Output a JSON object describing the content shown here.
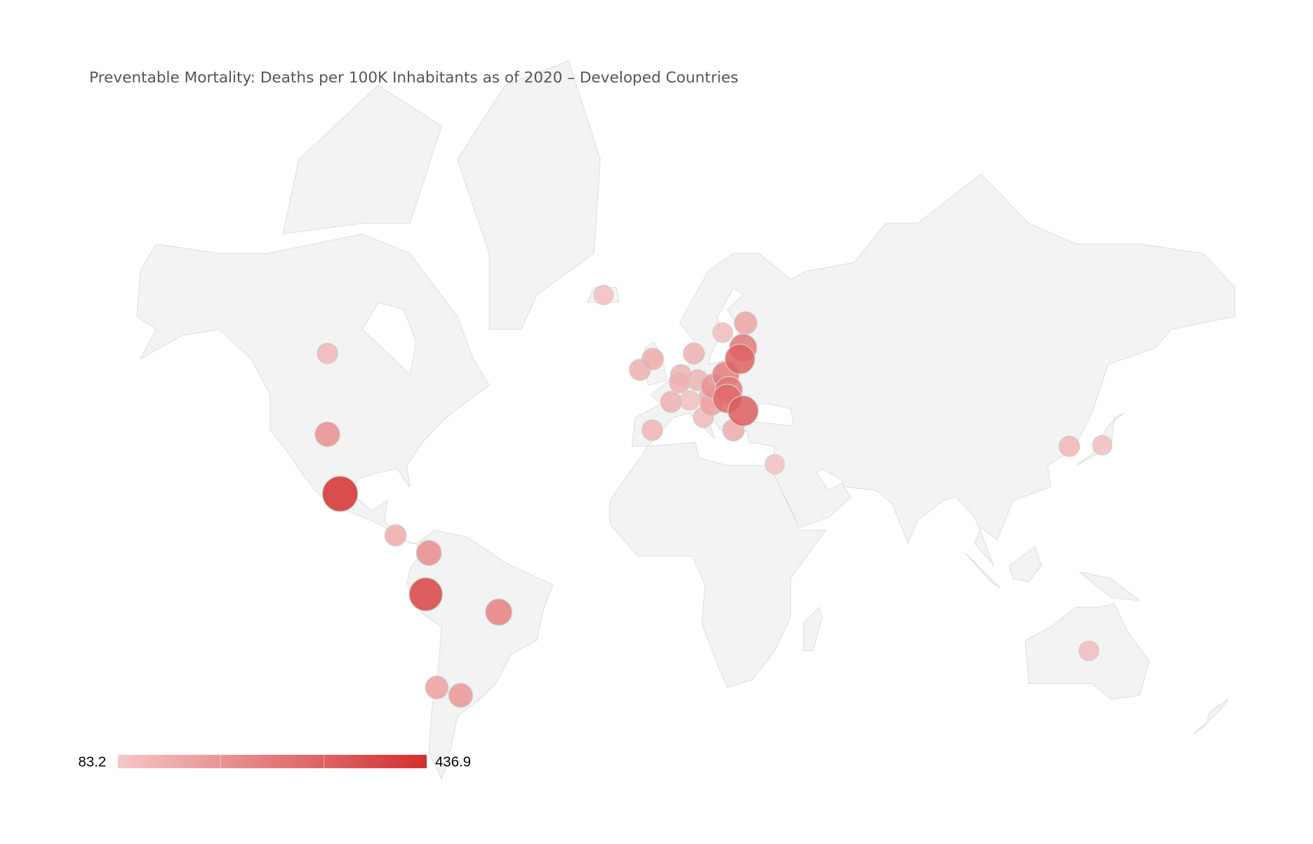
{
  "title": "Preventable Mortality: Deaths per 100K Inhabitants as of 2020 – Developed Countries",
  "legend": {
    "min_label": "83.2",
    "max_label": "436.9",
    "min": 83.2,
    "max": 436.9,
    "color_min": "#f4c7c7",
    "color_max": "#d32f2f"
  },
  "colors": {
    "land": "#f3f3f3",
    "border": "#dcdcdc",
    "background": "#ffffff"
  },
  "chart_data": {
    "type": "bubble-map",
    "title": "Preventable Mortality: Deaths per 100K Inhabitants as of 2020 – Developed Countries",
    "color_range": [
      83.2,
      436.9
    ],
    "markers": [
      {
        "country": "Canada",
        "lon": -106,
        "lat": 56,
        "value": 125
      },
      {
        "country": "United States",
        "lon": -106,
        "lat": 39,
        "value": 215
      },
      {
        "country": "Mexico",
        "lon": -102,
        "lat": 23,
        "value": 436.9
      },
      {
        "country": "Costa Rica",
        "lon": -84.5,
        "lat": 10.5,
        "value": 145
      },
      {
        "country": "Colombia",
        "lon": -74,
        "lat": 5,
        "value": 220
      },
      {
        "country": "Peru",
        "lon": -75,
        "lat": -8,
        "value": 390
      },
      {
        "country": "Brazil",
        "lon": -52,
        "lat": -13.5,
        "value": 250
      },
      {
        "country": "Chile",
        "lon": -71.5,
        "lat": -35,
        "value": 175
      },
      {
        "country": "Argentina",
        "lon": -64,
        "lat": -37,
        "value": 200
      },
      {
        "country": "Iceland",
        "lon": -19,
        "lat": 65,
        "value": 105
      },
      {
        "country": "Ireland",
        "lon": -7.5,
        "lat": 53,
        "value": 140
      },
      {
        "country": "United Kingdom",
        "lon": -3.5,
        "lat": 55,
        "value": 150
      },
      {
        "country": "Spain",
        "lon": -3.6,
        "lat": 40,
        "value": 130
      },
      {
        "country": "France",
        "lon": 2.3,
        "lat": 46.5,
        "value": 140
      },
      {
        "country": "Belgium",
        "lon": 5,
        "lat": 50.6,
        "value": 140
      },
      {
        "country": "Netherlands",
        "lon": 5.4,
        "lat": 52,
        "value": 135
      },
      {
        "country": "Luxembourg",
        "lon": 10.7,
        "lat": 51,
        "value": 135
      },
      {
        "country": "Switzerland",
        "lon": 8.2,
        "lat": 46.8,
        "value": 105
      },
      {
        "country": "Denmark",
        "lon": 9.5,
        "lat": 56,
        "value": 140
      },
      {
        "country": "Sweden",
        "lon": 18.6,
        "lat": 59.5,
        "value": 110
      },
      {
        "country": "Estonia",
        "lon": 25.8,
        "lat": 61,
        "value": 170
      },
      {
        "country": "Latvia",
        "lon": 25,
        "lat": 57,
        "value": 270
      },
      {
        "country": "Lithuania",
        "lon": 24,
        "lat": 55,
        "value": 320
      },
      {
        "country": "Poland",
        "lon": 19.5,
        "lat": 52,
        "value": 255
      },
      {
        "country": "Czechia",
        "lon": 15.6,
        "lat": 49.8,
        "value": 210
      },
      {
        "country": "Slovakia",
        "lon": 20.5,
        "lat": 49,
        "value": 270
      },
      {
        "country": "Hungary",
        "lon": 20,
        "lat": 47.2,
        "value": 300
      },
      {
        "country": "Austria",
        "lon": 14.5,
        "lat": 47.5,
        "value": 145
      },
      {
        "country": "Slovenia",
        "lon": 15,
        "lat": 46,
        "value": 170
      },
      {
        "country": "Italy",
        "lon": 12.5,
        "lat": 43,
        "value": 120
      },
      {
        "country": "Romania",
        "lon": 25,
        "lat": 44.5,
        "value": 330
      },
      {
        "country": "Greece",
        "lon": 22,
        "lat": 40,
        "value": 150
      },
      {
        "country": "Israel",
        "lon": 35,
        "lat": 31.3,
        "value": 100
      },
      {
        "country": "South Korea",
        "lon": 127.8,
        "lat": 36,
        "value": 125
      },
      {
        "country": "Japan",
        "lon": 138.2,
        "lat": 36.3,
        "value": 105
      },
      {
        "country": "Australia",
        "lon": 134,
        "lat": -25,
        "value": 110
      }
    ]
  }
}
